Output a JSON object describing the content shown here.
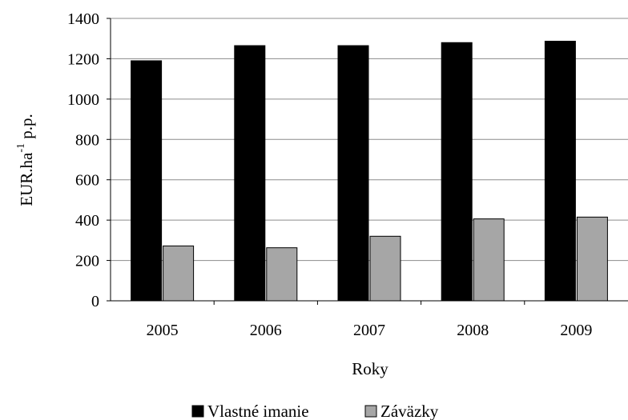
{
  "chart_data": {
    "type": "bar",
    "categories": [
      "2005",
      "2006",
      "2007",
      "2008",
      "2009"
    ],
    "series": [
      {
        "name": "Vlastné imanie",
        "values": [
          1190,
          1265,
          1265,
          1280,
          1287
        ],
        "color": "#000000"
      },
      {
        "name": "Záväzky",
        "values": [
          272,
          263,
          320,
          406,
          415
        ],
        "color": "#a6a6a6"
      }
    ],
    "xlabel": "Roky",
    "ylabel": {
      "main": "EUR.ha",
      "sup": "-1",
      "suffix": " p.p."
    },
    "ylim": [
      0,
      1400
    ],
    "yticks": [
      "0",
      "200",
      "400",
      "600",
      "800",
      "1000",
      "1200",
      "1400"
    ],
    "grid": true,
    "legend": "bottom"
  }
}
